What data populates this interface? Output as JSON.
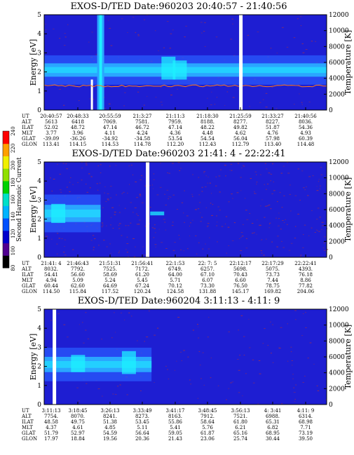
{
  "colors": {
    "background": "#1e1ed2",
    "band_dark": "#2a5cff",
    "band_mid": "#2aa6ff",
    "band_bright": "#1ef0ff",
    "band_white": "#ffffff",
    "temperature_trace": "#ff7a1e",
    "noise": "#b4323c"
  },
  "colorbar": {
    "label": "Second Harmonic Current",
    "ticks": [
      "80",
      "100",
      "120",
      "140",
      "160",
      "180",
      "200",
      "220",
      "240"
    ],
    "range": [
      80,
      240
    ],
    "colors": [
      "#000000",
      "#500090",
      "#0000cc",
      "#0050ff",
      "#00b4ff",
      "#00e0c8",
      "#00d200",
      "#90e000",
      "#f0f000",
      "#ffa000",
      "#ff0000"
    ]
  },
  "chart_data": [
    {
      "type": "heatmap",
      "title": "EXOS-D/TED  Date:960203  20:40:57 - 21:40:56",
      "ylabel": "Energy [eV]",
      "y2label": "Temperature [K]",
      "ylim": [
        0,
        5
      ],
      "y2lim": [
        0,
        12000
      ],
      "yticks": [
        "0",
        "1",
        "2",
        "3",
        "4",
        "5"
      ],
      "y2ticks": [
        "0",
        "2000",
        "4000",
        "6000",
        "8000",
        "10000",
        "12000"
      ],
      "band_center_ev": 2.1,
      "band_halfwidth_ev": 0.35,
      "gaps": [
        0.695
      ],
      "bright_features": [
        {
          "x": 0.2,
          "y0": 0.0,
          "y1": 5.0,
          "kind": "spike"
        },
        {
          "x": 0.44,
          "y0": 1.6,
          "y1": 2.8,
          "kind": "patch"
        },
        {
          "x": 0.48,
          "y0": 1.6,
          "y1": 2.6,
          "kind": "patch"
        }
      ],
      "temperature_k": 3050,
      "ephemeris": {
        "labels": [
          "UT",
          "ALT",
          "ILAT",
          "MLT",
          "GLAT",
          "GLON"
        ],
        "columns": [
          [
            "20:40:57",
            "5613",
            "52.02",
            "3.77",
            "-39.09",
            "113.41"
          ],
          [
            "20:48:33",
            "6418",
            "48.72",
            "3.96",
            "-36.26",
            "114.15"
          ],
          [
            "20:55:59",
            "7069.",
            "47.14",
            "4.11",
            "-34.92",
            "114.53"
          ],
          [
            "21:3:27",
            "7581.",
            "46.72",
            "4.24",
            "-34.58",
            "114.78"
          ],
          [
            "21:11:3",
            "7959.",
            "47.14",
            "4.36",
            "53.54",
            "112.20"
          ],
          [
            "21:18:30",
            "8188.",
            "48.22",
            "4.48",
            "54.54",
            "112.43"
          ],
          [
            "21:25:59",
            "8277.",
            "49.82",
            "4.62",
            "56.04",
            "112.79"
          ],
          [
            "21:33:27",
            "8227.",
            "51.87",
            "4.76",
            "57.98",
            "113.40"
          ],
          [
            "21:40:56",
            "8036.",
            "54.36",
            "4.93",
            "60.39",
            "114.48"
          ]
        ]
      }
    },
    {
      "type": "heatmap",
      "title": "EXOS-D/TED  Date:960203  21:41: 4 - 22:22:41",
      "ylabel": "Energy [eV]",
      "y2label": "Temperature [K]",
      "ylim": [
        0,
        5
      ],
      "y2lim": [
        0,
        12000
      ],
      "yticks": [
        "0",
        "1",
        "2",
        "3",
        "4",
        "5"
      ],
      "y2ticks": [
        "0",
        "2000",
        "4000",
        "6000",
        "8000",
        "10000",
        "12000"
      ],
      "band_center_ev": 2.3,
      "band_halfwidth_ev": 0.45,
      "gaps": [
        0.365
      ],
      "bright_features": [
        {
          "x": 0.05,
          "y0": 1.8,
          "y1": 2.8,
          "kind": "patch"
        },
        {
          "x": 0.4,
          "y0": 2.2,
          "y1": 2.4,
          "kind": "patch"
        }
      ],
      "temperature_k": 0,
      "ephemeris": {
        "labels": [
          "UT",
          "ALT",
          "ILAT",
          "MLT",
          "GLAT",
          "GLON"
        ],
        "columns": [
          [
            "21:41: 4",
            "8032.",
            "54.41",
            "4.94",
            "60.44",
            "114.50"
          ],
          [
            "21:46:43",
            "7792.",
            "56.60",
            "5.09",
            "62.60",
            "115.84"
          ],
          [
            "21:51:31",
            "7525.",
            "58.69",
            "5.24",
            "64.69",
            "117.52"
          ],
          [
            "21:56:41",
            "7172.",
            "61.20",
            "5.45",
            "67.24",
            "120.24"
          ],
          [
            "22:1:53",
            "6749.",
            "64.00",
            "5.71",
            "70.12",
            "124.58"
          ],
          [
            "22: 7: 5",
            "6257.",
            "67.10",
            "6.07",
            "73.30",
            "131.88"
          ],
          [
            "22:12:17",
            "5698.",
            "70.43",
            "6.60",
            "76.50",
            "145.17"
          ],
          [
            "22:17:29",
            "5075.",
            "73.73",
            "7.44",
            "78.75",
            "169.82"
          ],
          [
            "22:22:41",
            "4393.",
            "76.18",
            "8.86",
            "77.82",
            "204.06"
          ]
        ]
      }
    },
    {
      "type": "heatmap",
      "title": "EXOS-D/TED  Date:960204  3:11:13 - 4:11: 9",
      "ylabel": "Energy [eV]",
      "y2label": "Temperature [K]",
      "ylim": [
        0,
        5
      ],
      "y2lim": [
        0,
        12000
      ],
      "yticks": [
        "0",
        "1",
        "2",
        "3",
        "4",
        "5"
      ],
      "y2ticks": [
        "0",
        "2000",
        "4000",
        "6000",
        "8000",
        "10000",
        "12000"
      ],
      "band_center_ev": 2.1,
      "band_halfwidth_ev": 0.4,
      "gaps": [
        0.035
      ],
      "bright_features": [
        {
          "x": 0.12,
          "y0": 1.7,
          "y1": 2.6,
          "kind": "patch"
        },
        {
          "x": 0.3,
          "y0": 1.6,
          "y1": 2.8,
          "kind": "patch"
        }
      ],
      "temperature_k": 0,
      "ephemeris": {
        "labels": [
          "UT",
          "ALT",
          "ILAT",
          "MLT",
          "GLAT",
          "GLON"
        ],
        "columns": [
          [
            "3:11:13",
            "7754.",
            "48.58",
            "4.37",
            "51.79",
            "17.97"
          ],
          [
            "3:18:45",
            "8070.",
            "49.75",
            "4.61",
            "52.97",
            "18.84"
          ],
          [
            "3:26:13",
            "8241.",
            "51.38",
            "4.85",
            "54.59",
            "19.56"
          ],
          [
            "3:33:49",
            "8273.",
            "53.45",
            "5.11",
            "56.64",
            "20.36"
          ],
          [
            "3:41:17",
            "8163.",
            "55.86",
            "5.41",
            "59.05",
            "21.43"
          ],
          [
            "3:48:45",
            "7912.",
            "58.64",
            "5.76",
            "61.87",
            "23.06"
          ],
          [
            "3:56:13",
            "7521.",
            "61.80",
            "6.21",
            "65.16",
            "25.74"
          ],
          [
            "4: 3:41",
            "6988.",
            "65.31",
            "6.82",
            "68.95",
            "30.44"
          ],
          [
            "4:11: 9",
            "6314.",
            "68.98",
            "7.71",
            "73.19",
            "39.50"
          ]
        ]
      }
    }
  ]
}
